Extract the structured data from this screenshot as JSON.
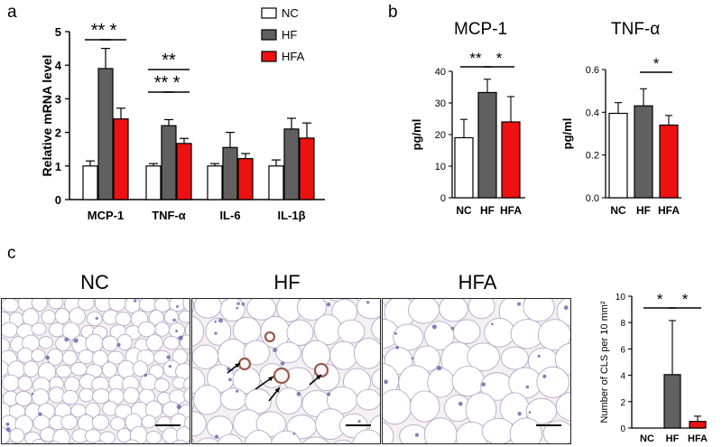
{
  "panels": {
    "a": {
      "letter": "a"
    },
    "b": {
      "letter": "b"
    },
    "c": {
      "letter": "c"
    }
  },
  "colors": {
    "NC": "#ffffff",
    "HF": "#606060",
    "HFA": "#ee1111",
    "stroke": "#000000"
  },
  "chart_data": [
    {
      "id": "a",
      "type": "bar",
      "xlabel": "",
      "ylabel": "Relative mRNA level",
      "ylim": [
        0,
        5
      ],
      "yticks": [
        0,
        1,
        2,
        3,
        4,
        5
      ],
      "categories": [
        "MCP-1",
        "TNF-α",
        "IL-6",
        "IL-1β"
      ],
      "series": [
        {
          "name": "NC",
          "values": [
            1.0,
            1.0,
            1.0,
            1.0
          ],
          "errors": [
            0.15,
            0.07,
            0.07,
            0.18
          ]
        },
        {
          "name": "HF",
          "values": [
            3.9,
            2.2,
            1.55,
            2.1
          ],
          "errors": [
            0.6,
            0.18,
            0.45,
            0.32
          ]
        },
        {
          "name": "HFA",
          "values": [
            2.4,
            1.67,
            1.22,
            1.83
          ],
          "errors": [
            0.32,
            0.15,
            0.15,
            0.45
          ]
        }
      ],
      "legend": {
        "placement": "top-right",
        "entries": [
          "NC",
          "HF",
          "HFA"
        ]
      },
      "significance": [
        {
          "category": "MCP-1",
          "from": "NC",
          "to": "HF",
          "label": "**"
        },
        {
          "category": "MCP-1",
          "from": "HF",
          "to": "HFA",
          "label": "*"
        },
        {
          "category": "TNF-α",
          "from": "NC",
          "to": "HFA",
          "label": "**"
        },
        {
          "category": "TNF-α",
          "from": "NC",
          "to": "HF",
          "label": "**"
        },
        {
          "category": "TNF-α",
          "from": "HF",
          "to": "HFA",
          "label": "*"
        }
      ]
    },
    {
      "id": "b1",
      "type": "bar",
      "title": "MCP-1",
      "ylabel": "pg/ml",
      "ylim": [
        0,
        40
      ],
      "yticks": [
        0,
        10,
        20,
        30,
        40
      ],
      "categories": [
        "NC",
        "HF",
        "HFA"
      ],
      "values": [
        19,
        33.3,
        24
      ],
      "errors": [
        5.8,
        4.2,
        8
      ],
      "significance": [
        {
          "from": "NC",
          "to": "HF",
          "label": "**"
        },
        {
          "from": "HF",
          "to": "HFA",
          "label": "*"
        }
      ]
    },
    {
      "id": "b2",
      "type": "bar",
      "title": "TNF-α",
      "ylabel": "pg/ml",
      "ylim": [
        0,
        0.6
      ],
      "yticks": [
        "0.0",
        "0.2",
        "0.4",
        "0.6"
      ],
      "categories": [
        "NC",
        "HF",
        "HFA"
      ],
      "values": [
        0.395,
        0.43,
        0.34
      ],
      "errors": [
        0.05,
        0.08,
        0.045
      ],
      "significance": [
        {
          "from": "HF",
          "to": "HFA",
          "label": "*"
        }
      ]
    },
    {
      "id": "c-plot",
      "type": "bar",
      "ylabel": "Number of CLS per 10 mm²",
      "ylim": [
        0,
        10
      ],
      "yticks": [
        0,
        2,
        4,
        6,
        8,
        10
      ],
      "categories": [
        "NC",
        "HF",
        "HFA"
      ],
      "values": [
        0,
        4.05,
        0.5
      ],
      "errors": [
        0,
        4.1,
        0.4
      ],
      "significance": [
        {
          "from": "NC",
          "to": "HF",
          "label": "*"
        },
        {
          "from": "HF",
          "to": "HFA",
          "label": "*"
        }
      ]
    }
  ],
  "histology": {
    "titles": [
      "NC",
      "HF",
      "HFA"
    ]
  }
}
